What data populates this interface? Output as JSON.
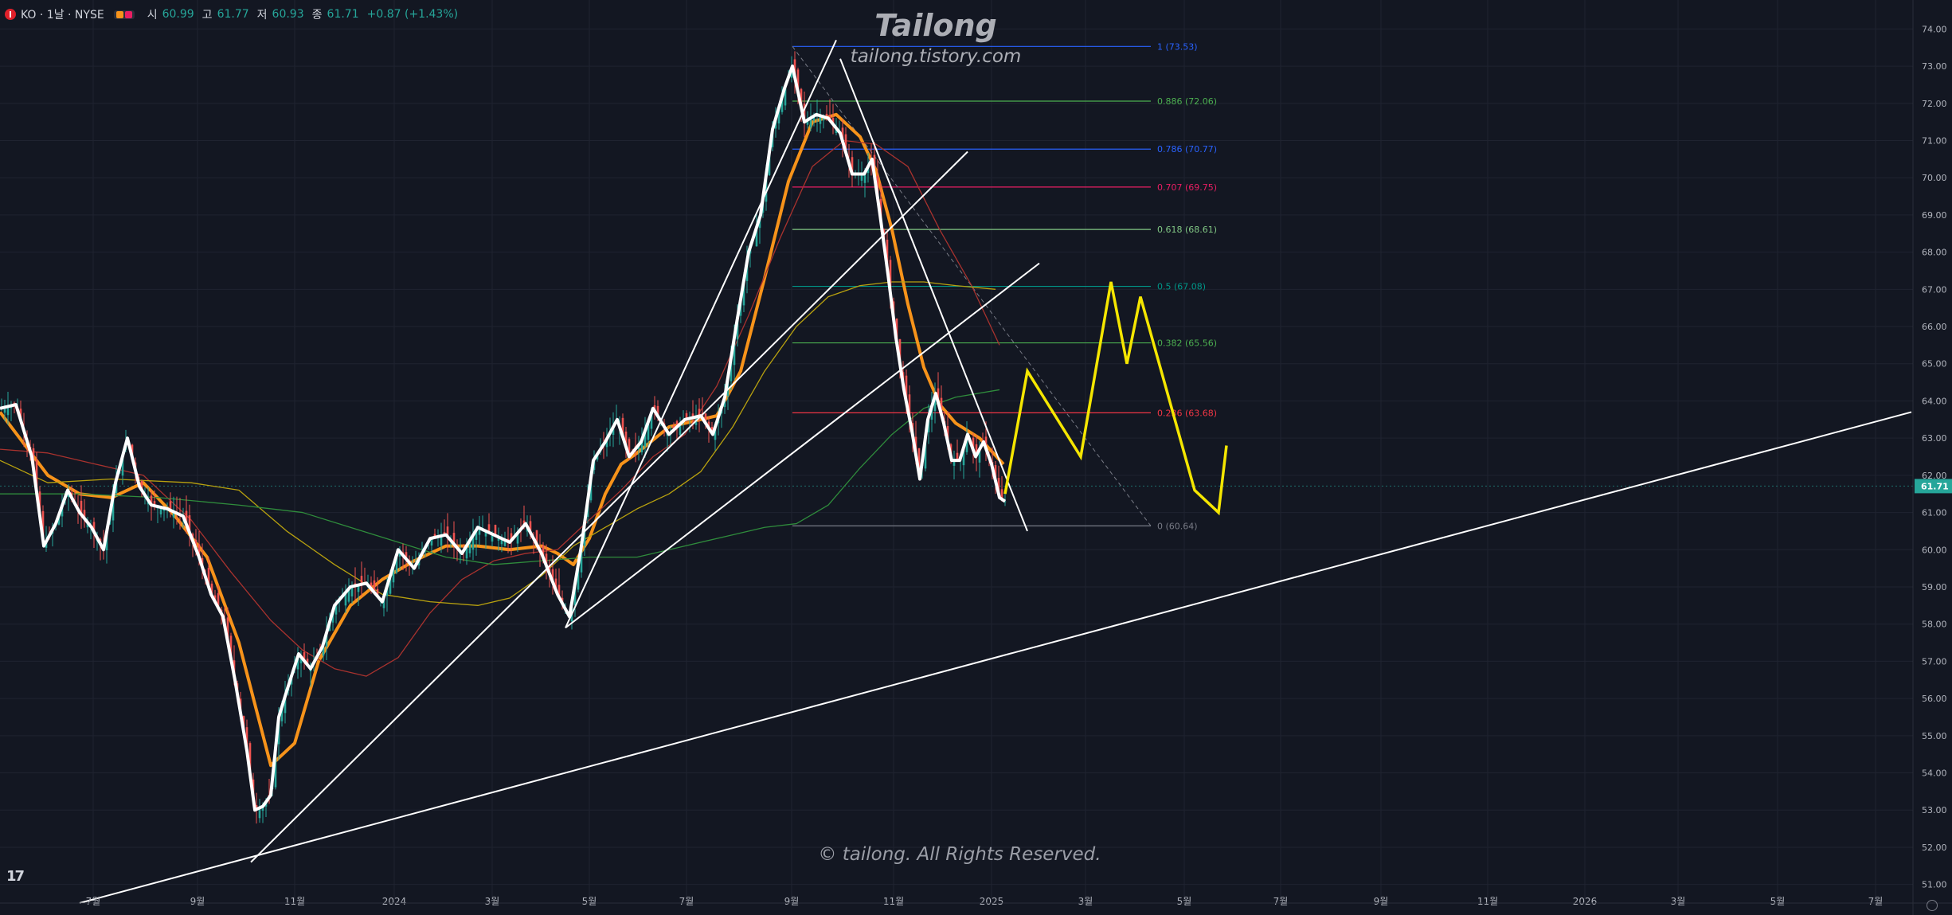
{
  "header": {
    "symbol": "KO · 1날 · NYSE",
    "open_label": "시",
    "open": "60.99",
    "high_label": "고",
    "high": "61.77",
    "low_label": "저",
    "low": "60.93",
    "close_label": "종",
    "close": "61.71",
    "change": "+0.87 (+1.43%)"
  },
  "watermark": {
    "title": "Tailong",
    "url": "tailong.tistory.com",
    "copyright": "© tailong. All Rights Reserved."
  },
  "price_tag": {
    "value": "61.71",
    "color": "#26a69a"
  },
  "chart_data": {
    "type": "candlestick",
    "title": "",
    "ylim": [
      50.5,
      74.5
    ],
    "y_ticks": [
      "51.00",
      "52.00",
      "53.00",
      "54.00",
      "55.00",
      "56.00",
      "57.00",
      "58.00",
      "59.00",
      "60.00",
      "61.00",
      "62.00",
      "63.00",
      "64.00",
      "65.00",
      "66.00",
      "67.00",
      "68.00",
      "69.00",
      "70.00",
      "71.00",
      "72.00",
      "73.00",
      "74.00"
    ],
    "x_ticks": [
      "7월",
      "9월",
      "11월",
      "2024",
      "3월",
      "5월",
      "7월",
      "9월",
      "11월",
      "2025",
      "3월",
      "5월",
      "7월",
      "9월",
      "11월",
      "2026",
      "3월",
      "5월",
      "7월"
    ],
    "grid": true,
    "price_series": [
      {
        "name": "",
        "points": [
          [
            0,
            63.8
          ],
          [
            20,
            63.9
          ],
          [
            40,
            62.5
          ],
          [
            55,
            60.1
          ],
          [
            70,
            60.7
          ],
          [
            85,
            61.6
          ],
          [
            100,
            61.0
          ],
          [
            115,
            60.6
          ],
          [
            130,
            60.0
          ],
          [
            145,
            61.8
          ],
          [
            160,
            63.0
          ],
          [
            175,
            61.7
          ],
          [
            190,
            61.2
          ],
          [
            210,
            61.1
          ],
          [
            230,
            60.9
          ],
          [
            250,
            59.8
          ],
          [
            265,
            58.8
          ],
          [
            280,
            58.2
          ],
          [
            295,
            56.5
          ],
          [
            310,
            54.6
          ],
          [
            320,
            53.0
          ],
          [
            330,
            53.1
          ],
          [
            340,
            53.4
          ],
          [
            350,
            55.5
          ],
          [
            360,
            56.2
          ],
          [
            375,
            57.2
          ],
          [
            390,
            56.8
          ],
          [
            405,
            57.4
          ],
          [
            420,
            58.5
          ],
          [
            440,
            59.0
          ],
          [
            460,
            59.1
          ],
          [
            480,
            58.6
          ],
          [
            500,
            60.0
          ],
          [
            520,
            59.5
          ],
          [
            540,
            60.3
          ],
          [
            560,
            60.4
          ],
          [
            580,
            59.9
          ],
          [
            600,
            60.6
          ],
          [
            620,
            60.4
          ],
          [
            640,
            60.2
          ],
          [
            660,
            60.7
          ],
          [
            680,
            59.9
          ],
          [
            700,
            58.8
          ],
          [
            715,
            58.2
          ],
          [
            730,
            60.1
          ],
          [
            745,
            62.4
          ],
          [
            760,
            62.9
          ],
          [
            775,
            63.5
          ],
          [
            790,
            62.5
          ],
          [
            805,
            62.9
          ],
          [
            820,
            63.8
          ],
          [
            840,
            63.1
          ],
          [
            860,
            63.5
          ],
          [
            880,
            63.6
          ],
          [
            895,
            63.1
          ],
          [
            910,
            64.1
          ],
          [
            925,
            66.1
          ],
          [
            940,
            68.0
          ],
          [
            955,
            69.0
          ],
          [
            970,
            71.3
          ],
          [
            985,
            72.4
          ],
          [
            995,
            73.0
          ],
          [
            1010,
            71.5
          ],
          [
            1025,
            71.7
          ],
          [
            1040,
            71.6
          ],
          [
            1055,
            71.2
          ],
          [
            1070,
            70.1
          ],
          [
            1085,
            70.1
          ],
          [
            1095,
            70.5
          ],
          [
            1105,
            69.0
          ],
          [
            1115,
            67.4
          ],
          [
            1125,
            65.7
          ],
          [
            1135,
            64.3
          ],
          [
            1145,
            63.2
          ],
          [
            1155,
            61.9
          ],
          [
            1165,
            63.5
          ],
          [
            1175,
            64.2
          ],
          [
            1185,
            63.4
          ],
          [
            1195,
            62.4
          ],
          [
            1205,
            62.4
          ],
          [
            1215,
            63.1
          ],
          [
            1225,
            62.5
          ],
          [
            1235,
            62.9
          ],
          [
            1245,
            62.3
          ],
          [
            1255,
            61.4
          ],
          [
            1262,
            61.3
          ]
        ]
      }
    ],
    "moving_averages": [
      {
        "name": "MA (orange)",
        "color": "#f7931a",
        "points": [
          [
            0,
            63.7
          ],
          [
            60,
            62.0
          ],
          [
            100,
            61.5
          ],
          [
            140,
            61.4
          ],
          [
            180,
            61.8
          ],
          [
            220,
            60.9
          ],
          [
            260,
            59.8
          ],
          [
            300,
            57.5
          ],
          [
            340,
            54.2
          ],
          [
            370,
            54.8
          ],
          [
            400,
            57.0
          ],
          [
            440,
            58.5
          ],
          [
            480,
            59.2
          ],
          [
            520,
            59.7
          ],
          [
            560,
            60.1
          ],
          [
            600,
            60.1
          ],
          [
            640,
            60.0
          ],
          [
            680,
            60.1
          ],
          [
            700,
            59.9
          ],
          [
            720,
            59.6
          ],
          [
            740,
            60.3
          ],
          [
            760,
            61.5
          ],
          [
            780,
            62.3
          ],
          [
            800,
            62.6
          ],
          [
            840,
            63.3
          ],
          [
            880,
            63.5
          ],
          [
            900,
            63.6
          ],
          [
            930,
            64.8
          ],
          [
            960,
            67.3
          ],
          [
            990,
            69.9
          ],
          [
            1020,
            71.5
          ],
          [
            1050,
            71.7
          ],
          [
            1080,
            71.1
          ],
          [
            1100,
            70.2
          ],
          [
            1120,
            68.6
          ],
          [
            1140,
            66.6
          ],
          [
            1160,
            64.9
          ],
          [
            1180,
            63.9
          ],
          [
            1200,
            63.4
          ],
          [
            1230,
            63.0
          ],
          [
            1260,
            62.3
          ]
        ]
      },
      {
        "name": "MA (red)",
        "color": "#a8322e",
        "points": [
          [
            0,
            62.7
          ],
          [
            60,
            62.6
          ],
          [
            120,
            62.3
          ],
          [
            180,
            62.0
          ],
          [
            240,
            60.8
          ],
          [
            290,
            59.4
          ],
          [
            340,
            58.1
          ],
          [
            380,
            57.3
          ],
          [
            420,
            56.8
          ],
          [
            460,
            56.6
          ],
          [
            500,
            57.1
          ],
          [
            540,
            58.3
          ],
          [
            580,
            59.2
          ],
          [
            620,
            59.7
          ],
          [
            660,
            59.9
          ],
          [
            700,
            60.0
          ],
          [
            740,
            60.8
          ],
          [
            780,
            61.6
          ],
          [
            820,
            62.5
          ],
          [
            860,
            63.1
          ],
          [
            900,
            64.4
          ],
          [
            940,
            66.3
          ],
          [
            980,
            68.4
          ],
          [
            1020,
            70.3
          ],
          [
            1060,
            71.0
          ],
          [
            1100,
            70.9
          ],
          [
            1140,
            70.3
          ],
          [
            1180,
            68.6
          ],
          [
            1220,
            67.1
          ],
          [
            1255,
            65.5
          ]
        ]
      },
      {
        "name": "MA (yellow)",
        "color": "#b8a10f",
        "points": [
          [
            0,
            62.4
          ],
          [
            60,
            61.8
          ],
          [
            140,
            61.9
          ],
          [
            240,
            61.8
          ],
          [
            300,
            61.6
          ],
          [
            360,
            60.5
          ],
          [
            420,
            59.6
          ],
          [
            480,
            58.8
          ],
          [
            540,
            58.6
          ],
          [
            600,
            58.5
          ],
          [
            640,
            58.7
          ],
          [
            680,
            59.3
          ],
          [
            720,
            60.1
          ],
          [
            760,
            60.6
          ],
          [
            800,
            61.1
          ],
          [
            840,
            61.5
          ],
          [
            880,
            62.1
          ],
          [
            920,
            63.3
          ],
          [
            960,
            64.8
          ],
          [
            1000,
            66.0
          ],
          [
            1040,
            66.8
          ],
          [
            1080,
            67.1
          ],
          [
            1120,
            67.2
          ],
          [
            1160,
            67.2
          ],
          [
            1200,
            67.1
          ],
          [
            1250,
            67.0
          ]
        ]
      },
      {
        "name": "MA (green)",
        "color": "#2f8c3c",
        "points": [
          [
            0,
            61.5
          ],
          [
            100,
            61.5
          ],
          [
            200,
            61.4
          ],
          [
            300,
            61.2
          ],
          [
            380,
            61.0
          ],
          [
            440,
            60.6
          ],
          [
            500,
            60.2
          ],
          [
            560,
            59.8
          ],
          [
            620,
            59.6
          ],
          [
            680,
            59.7
          ],
          [
            740,
            59.8
          ],
          [
            800,
            59.8
          ],
          [
            860,
            60.1
          ],
          [
            920,
            60.4
          ],
          [
            960,
            60.6
          ],
          [
            1000,
            60.7
          ],
          [
            1040,
            61.2
          ],
          [
            1080,
            62.2
          ],
          [
            1120,
            63.1
          ],
          [
            1160,
            63.8
          ],
          [
            1200,
            64.1
          ],
          [
            1255,
            64.3
          ]
        ]
      }
    ],
    "fibonacci": [
      {
        "label": "1 (73.53)",
        "value": 73.53,
        "color": "#2962ff"
      },
      {
        "label": "0.886 (72.06)",
        "value": 72.06,
        "color": "#4caf50"
      },
      {
        "label": "0.786 (70.77)",
        "value": 70.77,
        "color": "#2962ff"
      },
      {
        "label": "0.707 (69.75)",
        "value": 69.75,
        "color": "#e91e63"
      },
      {
        "label": "0.618 (68.61)",
        "value": 68.61,
        "color": "#81c784"
      },
      {
        "label": "0.5 (67.08)",
        "value": 67.08,
        "color": "#009688"
      },
      {
        "label": "0.382 (65.56)",
        "value": 65.56,
        "color": "#4caf50"
      },
      {
        "label": "0.236 (63.68)",
        "value": 63.68,
        "color": "#f23645"
      },
      {
        "label": "0 (60.64)",
        "value": 60.64,
        "color": "#787b86"
      }
    ],
    "trendlines": [
      {
        "from": [
          100,
          50.5
        ],
        "to": [
          2400,
          63.7
        ]
      },
      {
        "from": [
          315,
          51.6
        ],
        "to": [
          1215,
          70.7
        ]
      },
      {
        "from": [
          710,
          57.9
        ],
        "to": [
          1305,
          67.7
        ]
      },
      {
        "from": [
          710,
          57.9
        ],
        "to": [
          1050,
          73.7
        ]
      },
      {
        "from": [
          1055,
          73.2
        ],
        "to": [
          1290,
          60.5
        ]
      }
    ],
    "projection": {
      "color": "#f5e600",
      "points": [
        [
          1262,
          61.5
        ],
        [
          1290,
          64.8
        ],
        [
          1357,
          62.5
        ],
        [
          1395,
          67.2
        ],
        [
          1415,
          65.0
        ],
        [
          1432,
          66.8
        ],
        [
          1500,
          61.6
        ],
        [
          1530,
          61.0
        ],
        [
          1540,
          62.8
        ]
      ]
    },
    "last_price": 61.71
  }
}
